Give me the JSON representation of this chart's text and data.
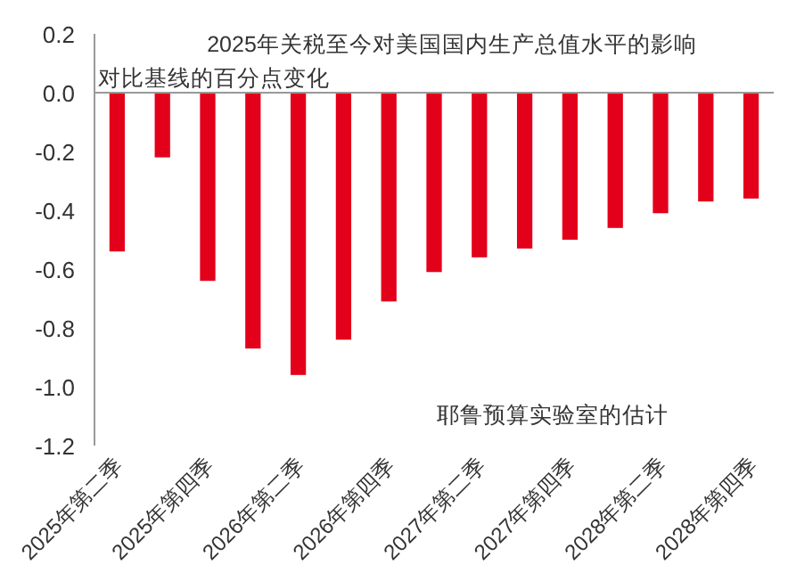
{
  "chart_data": {
    "type": "bar",
    "title": "2025年关税至今对美国国内生产总值水平的影响",
    "ylabel": "对比基线的百分点变化",
    "annotations": [
      "耶鲁预算实验室的估计"
    ],
    "categories": [
      "2025年第二季",
      null,
      "2025年第四季",
      null,
      "2026年第二季",
      null,
      "2026年第四季",
      null,
      "2027年第二季",
      null,
      "2027年第四季",
      null,
      "2028年第二季",
      null,
      "2028年第四季"
    ],
    "values": [
      -0.54,
      -0.22,
      -0.64,
      -0.87,
      -0.96,
      -0.84,
      -0.71,
      -0.61,
      -0.56,
      -0.53,
      -0.5,
      -0.46,
      -0.41,
      -0.37,
      -0.36
    ],
    "color": "#e3001b",
    "ylim": [
      -1.2,
      0.2
    ],
    "yticks": [
      {
        "value": 0.2,
        "label": "0.2"
      },
      {
        "value": 0,
        "label": "0.0"
      },
      {
        "value": -0.2,
        "label": "-0.2"
      },
      {
        "value": -0.4,
        "label": "-0.4"
      },
      {
        "value": -0.6,
        "label": "-0.6"
      },
      {
        "value": -0.8,
        "label": "-0.8"
      },
      {
        "value": -1.0,
        "label": "-1.0"
      },
      {
        "value": -1.2,
        "label": "-1.2"
      }
    ]
  }
}
